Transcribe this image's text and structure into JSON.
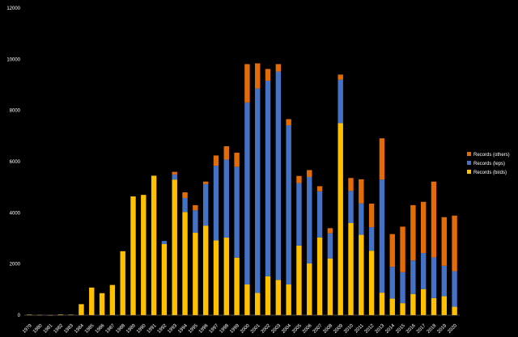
{
  "chart_data": {
    "type": "bar",
    "stacked": true,
    "categories": [
      "1979",
      "1980",
      "1981",
      "1982",
      "1983",
      "1984",
      "1985",
      "1986",
      "1987",
      "1988",
      "1989",
      "1990",
      "1991",
      "1992",
      "1993",
      "1994",
      "1995",
      "1996",
      "1997",
      "1998",
      "1999",
      "2000",
      "2001",
      "2002",
      "2003",
      "2004",
      "2005",
      "2006",
      "2007",
      "2008",
      "2009",
      "2010",
      "2011",
      "2012",
      "2013",
      "2014",
      "2015",
      "2016",
      "2017",
      "2018",
      "2019",
      "2020"
    ],
    "series": [
      {
        "name": "Records (birds)",
        "color": "#FFC000",
        "values": [
          20,
          10,
          5,
          25,
          20,
          430,
          1080,
          860,
          1180,
          2500,
          4640,
          4700,
          5450,
          2780,
          5300,
          4030,
          3220,
          3500,
          2920,
          3030,
          2250,
          1200,
          870,
          1520,
          1380,
          1200,
          2720,
          2020,
          3040,
          2220,
          7500,
          3600,
          3140,
          2520,
          880,
          650,
          470,
          830,
          1020,
          670,
          740,
          330
        ]
      },
      {
        "name": "Records (leps)",
        "color": "#4472C4",
        "values": [
          0,
          0,
          0,
          0,
          0,
          0,
          0,
          0,
          0,
          0,
          0,
          0,
          0,
          120,
          200,
          550,
          880,
          1620,
          2920,
          3050,
          3550,
          7110,
          7990,
          7640,
          8140,
          6220,
          2440,
          3380,
          1800,
          980,
          1700,
          1260,
          1230,
          920,
          4420,
          1240,
          1210,
          1310,
          1410,
          1590,
          1190,
          1390
        ]
      },
      {
        "name": "Records (others)",
        "color": "#E36C09",
        "values": [
          0,
          0,
          0,
          0,
          0,
          0,
          0,
          0,
          0,
          0,
          0,
          0,
          0,
          0,
          100,
          220,
          200,
          100,
          400,
          520,
          550,
          1500,
          980,
          460,
          290,
          240,
          280,
          270,
          200,
          200,
          200,
          500,
          940,
          920,
          1610,
          1280,
          1780,
          2160,
          2000,
          2960,
          1900,
          2170
        ]
      }
    ],
    "ylim": [
      0,
      12000
    ],
    "yticks": [
      "0",
      "2000",
      "4000",
      "6000",
      "8000",
      "10000",
      "12000"
    ],
    "grid": false,
    "legend_position": "right"
  }
}
